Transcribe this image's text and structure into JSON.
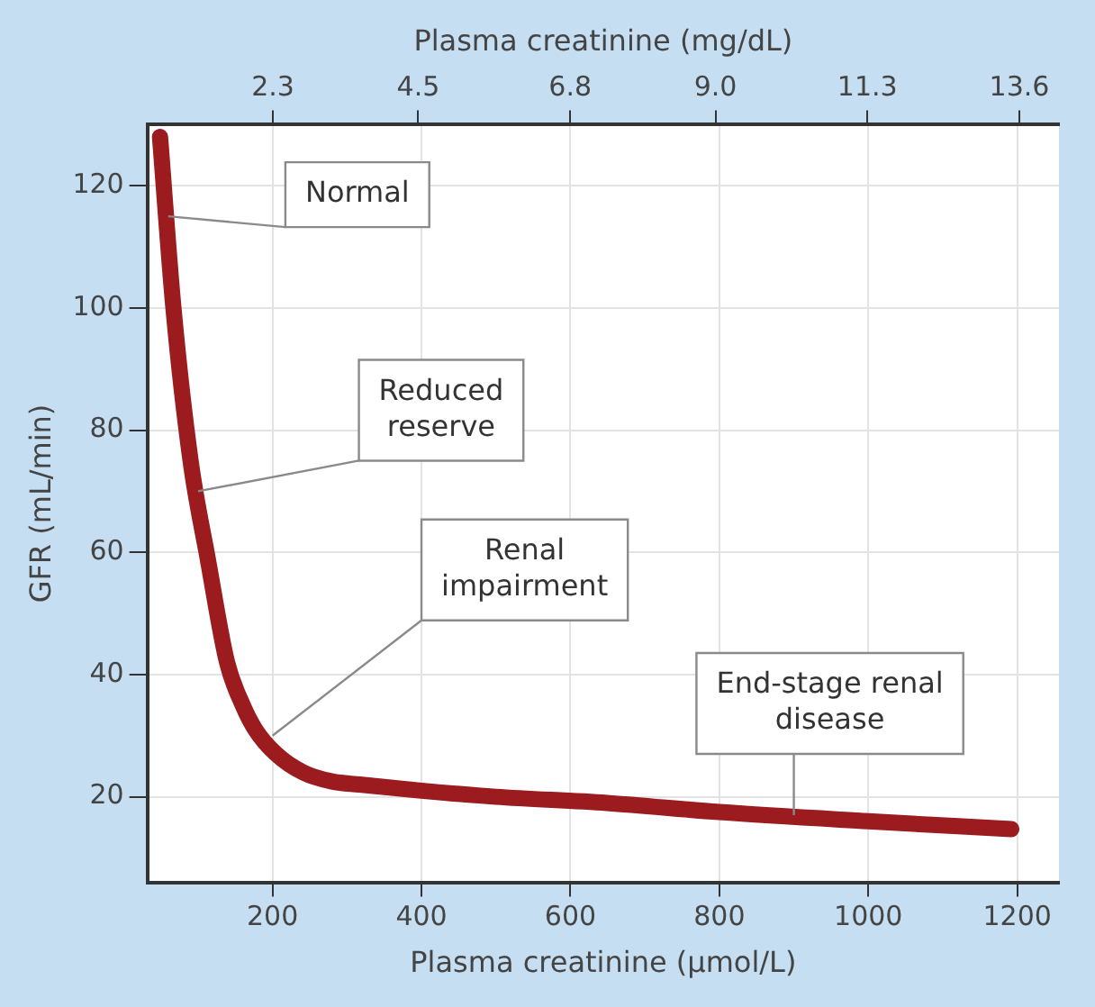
{
  "chart_data": {
    "type": "line",
    "xlabel": "Plasma creatinine (µmol/L)",
    "ylabel": "GFR (mL/min)",
    "x2label": "Plasma creatinine (mg/dL)",
    "x": [
      49,
      67,
      90,
      113,
      139,
      160,
      177,
      205,
      241,
      280,
      317,
      400,
      500,
      649,
      800,
      1000,
      1192
    ],
    "series": [
      {
        "color": "#9b1b1f",
        "values": [
          128,
          100,
          75,
          59,
          42,
          35,
          31,
          27,
          24,
          22.5,
          22,
          21,
          20,
          19,
          17.5,
          16,
          14.7
        ]
      }
    ],
    "xlim": [
      32,
      1256
    ],
    "xticks": [
      200,
      400,
      600,
      800,
      1000,
      1200
    ],
    "x2lim": [
      0.4,
      14.2
    ],
    "x2ticks": [
      2.3,
      4.5,
      6.8,
      {
        "value": 9,
        "label": "9.0"
      },
      11.3,
      13.6
    ],
    "ylim": [
      6,
      130
    ],
    "yticks": [
      20,
      40,
      60,
      80,
      100,
      120
    ],
    "grid": true,
    "legend": false,
    "marker": "none",
    "line_style": "solid",
    "annotations": [
      {
        "text": "Normal",
        "x": 60,
        "y": 115
      },
      {
        "text": "Reduced reserve",
        "x": 100,
        "y": 70
      },
      {
        "text": "Renal impairment",
        "x": 200,
        "y": 30
      },
      {
        "text": "End-stage renal disease",
        "x": 900,
        "y": 17
      }
    ]
  }
}
